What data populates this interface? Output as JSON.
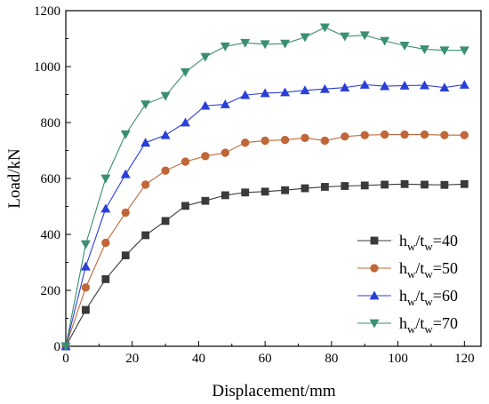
{
  "chart_data": {
    "type": "line",
    "xlabel": "Displacement/mm",
    "ylabel": "Load/kN",
    "xlim": [
      0,
      125
    ],
    "ylim": [
      0,
      1200
    ],
    "xticks": [
      "0",
      "20",
      "40",
      "60",
      "80",
      "100",
      "120"
    ],
    "yticks": [
      "0",
      "200",
      "400",
      "600",
      "800",
      "1000",
      "1200"
    ],
    "grid": false,
    "legend_position": "bottom-right",
    "series": [
      {
        "name": "40",
        "color": "#3a3a3a",
        "marker": "square",
        "x": [
          0,
          6,
          12,
          18,
          24,
          30,
          36,
          42,
          48,
          54,
          60,
          66,
          72,
          78,
          84,
          90,
          96,
          102,
          108,
          114,
          120
        ],
        "y": [
          0,
          130,
          240,
          325,
          397,
          448,
          502,
          520,
          540,
          550,
          553,
          558,
          565,
          570,
          573,
          575,
          578,
          580,
          578,
          577,
          580
        ]
      },
      {
        "name": "50",
        "color": "#c0673a",
        "marker": "circle",
        "x": [
          0,
          6,
          12,
          18,
          24,
          30,
          36,
          42,
          48,
          54,
          60,
          66,
          72,
          78,
          84,
          90,
          96,
          102,
          108,
          114,
          120
        ],
        "y": [
          0,
          210,
          370,
          478,
          578,
          628,
          660,
          680,
          692,
          728,
          735,
          738,
          745,
          735,
          750,
          755,
          757,
          757,
          757,
          755,
          755
        ]
      },
      {
        "name": "60",
        "color": "#2a3fd8",
        "marker": "triangle-up",
        "x": [
          0,
          6,
          12,
          18,
          24,
          30,
          36,
          42,
          48,
          54,
          60,
          66,
          72,
          78,
          84,
          90,
          96,
          102,
          108,
          114,
          120
        ],
        "y": [
          0,
          285,
          492,
          615,
          728,
          755,
          800,
          860,
          865,
          898,
          905,
          908,
          915,
          920,
          925,
          935,
          930,
          932,
          933,
          925,
          935
        ]
      },
      {
        "name": "70",
        "color": "#3a8f6f",
        "marker": "triangle-down",
        "x": [
          0,
          6,
          12,
          18,
          24,
          30,
          36,
          42,
          48,
          54,
          60,
          66,
          72,
          78,
          84,
          90,
          96,
          102,
          108,
          114,
          120
        ],
        "y": [
          0,
          365,
          600,
          758,
          865,
          895,
          980,
          1035,
          1072,
          1085,
          1080,
          1082,
          1105,
          1140,
          1108,
          1112,
          1092,
          1075,
          1062,
          1058,
          1058
        ]
      }
    ]
  }
}
